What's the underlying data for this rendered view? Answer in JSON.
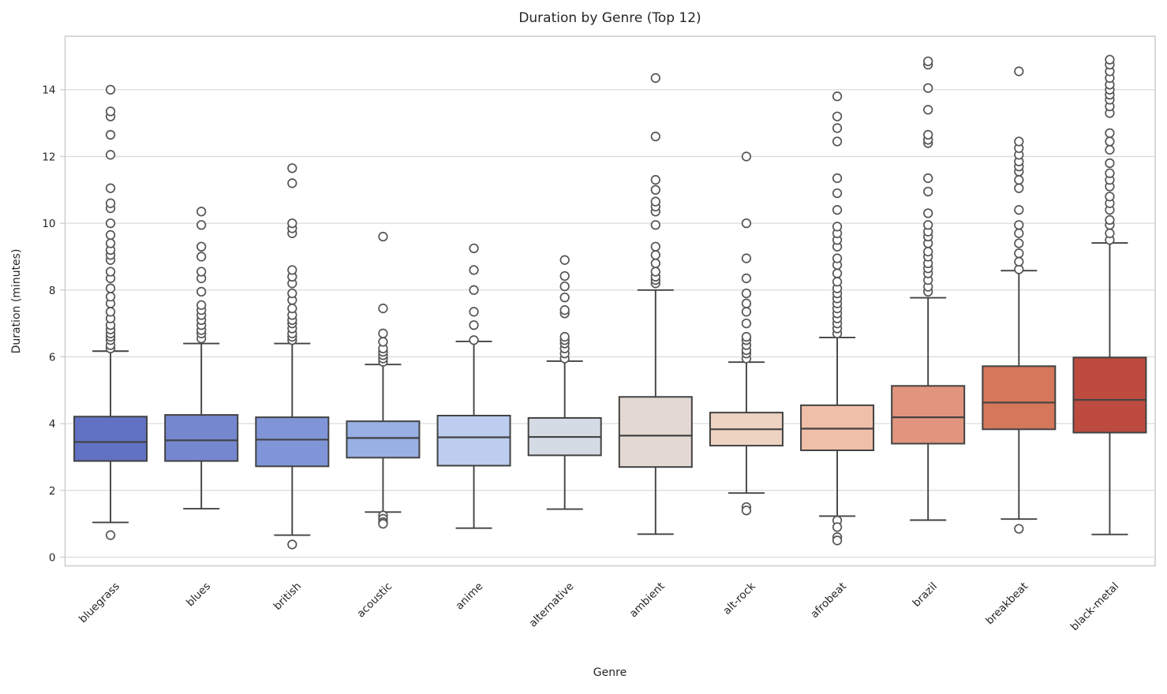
{
  "figure": {
    "title": "Duration by Genre (Top 12)",
    "xlabel": "Genre",
    "ylabel": "Duration (minutes)"
  },
  "chart_data": {
    "type": "box",
    "title": "Duration by Genre (Top 12)",
    "xlabel": "Genre",
    "ylabel": "Duration (minutes)",
    "palette_name": "coolwarm",
    "grid": "horizontal-only",
    "legend": "none",
    "ylim": [
      -0.26,
      15.6
    ],
    "yticks": [
      0,
      2,
      4,
      6,
      8,
      10,
      12,
      14
    ],
    "categories": [
      "bluegrass",
      "blues",
      "british",
      "acoustic",
      "anime",
      "alternative",
      "ambient",
      "alt-rock",
      "afrobeat",
      "brazil",
      "breakbeat",
      "black-metal"
    ],
    "colors": {
      "grid": "#dcdcdc",
      "frame": "#cccccc",
      "box_edge": "#424242",
      "outlier_edge": "#555555",
      "text": "#262626"
    },
    "series": [
      {
        "genre": "bluegrass",
        "color": "#6172c3",
        "q1": 2.88,
        "median": 3.45,
        "q3": 4.21,
        "whisker_low": 1.04,
        "whisker_high": 6.17,
        "outliers": [
          0.66,
          6.25,
          6.35,
          6.5,
          6.6,
          6.7,
          6.82,
          6.95,
          7.15,
          7.35,
          7.6,
          7.8,
          8.05,
          8.35,
          8.55,
          8.9,
          9.05,
          9.2,
          9.4,
          9.65,
          10.0,
          10.45,
          10.6,
          11.05,
          12.05,
          12.65,
          13.2,
          13.35,
          14.0
        ]
      },
      {
        "genre": "blues",
        "color": "#7587cf",
        "q1": 2.88,
        "median": 3.5,
        "q3": 4.26,
        "whisker_low": 1.45,
        "whisker_high": 6.4,
        "outliers": [
          6.55,
          6.7,
          6.8,
          6.95,
          7.1,
          7.25,
          7.4,
          7.55,
          7.95,
          8.35,
          8.55,
          9.0,
          9.3,
          9.95,
          10.35
        ]
      },
      {
        "genre": "british",
        "color": "#8095d8",
        "q1": 2.72,
        "median": 3.52,
        "q3": 4.19,
        "whisker_low": 0.66,
        "whisker_high": 6.4,
        "outliers": [
          0.38,
          6.5,
          6.6,
          6.7,
          6.85,
          7.0,
          7.1,
          7.25,
          7.45,
          7.7,
          7.9,
          8.2,
          8.4,
          8.6,
          9.7,
          9.85,
          10.0,
          11.2,
          11.65
        ]
      },
      {
        "genre": "acoustic",
        "color": "#98b0e4",
        "q1": 2.98,
        "median": 3.57,
        "q3": 4.07,
        "whisker_low": 1.35,
        "whisker_high": 5.77,
        "outliers": [
          1.25,
          1.15,
          1.05,
          1.0,
          5.85,
          5.95,
          6.05,
          6.15,
          6.25,
          6.45,
          6.7,
          7.45,
          9.6
        ]
      },
      {
        "genre": "anime",
        "color": "#bccdf0",
        "q1": 2.74,
        "median": 3.59,
        "q3": 4.24,
        "whisker_low": 0.87,
        "whisker_high": 6.46,
        "outliers": [
          6.5,
          6.95,
          7.35,
          8.0,
          8.6,
          9.25
        ]
      },
      {
        "genre": "alternative",
        "color": "#d5dbe4",
        "q1": 3.05,
        "median": 3.6,
        "q3": 4.17,
        "whisker_low": 1.44,
        "whisker_high": 5.87,
        "outliers": [
          5.95,
          6.1,
          6.25,
          6.4,
          6.5,
          6.6,
          7.3,
          7.4,
          7.78,
          8.11,
          8.42,
          8.9
        ]
      },
      {
        "genre": "ambient",
        "color": "#e3d9d2",
        "q1": 2.7,
        "median": 3.64,
        "q3": 4.8,
        "whisker_low": 0.69,
        "whisker_high": 8.0,
        "outliers": [
          8.2,
          8.3,
          8.4,
          8.55,
          8.8,
          9.05,
          9.3,
          9.95,
          10.35,
          10.5,
          10.65,
          11.0,
          11.3,
          12.6,
          14.35
        ]
      },
      {
        "genre": "alt-rock",
        "color": "#eed3c2",
        "q1": 3.34,
        "median": 3.83,
        "q3": 4.33,
        "whisker_low": 1.92,
        "whisker_high": 5.84,
        "outliers": [
          1.5,
          1.4,
          5.95,
          6.1,
          6.2,
          6.35,
          6.5,
          6.6,
          7.0,
          7.35,
          7.6,
          7.9,
          8.35,
          8.95,
          10.0,
          12.0
        ]
      },
      {
        "genre": "afrobeat",
        "color": "#f0bfa7",
        "q1": 3.2,
        "median": 3.85,
        "q3": 4.55,
        "whisker_low": 1.23,
        "whisker_high": 6.58,
        "outliers": [
          1.1,
          0.9,
          0.6,
          0.5,
          6.7,
          6.85,
          7.0,
          7.15,
          7.3,
          7.45,
          7.6,
          7.75,
          7.9,
          8.05,
          8.25,
          8.5,
          8.75,
          8.95,
          9.3,
          9.5,
          9.7,
          9.9,
          10.4,
          10.9,
          11.35,
          12.45,
          12.85,
          13.2,
          13.8
        ]
      },
      {
        "genre": "brazil",
        "color": "#e2957e",
        "q1": 3.4,
        "median": 4.19,
        "q3": 5.13,
        "whisker_low": 1.11,
        "whisker_high": 7.77,
        "outliers": [
          7.95,
          8.1,
          8.3,
          8.5,
          8.65,
          8.8,
          9.0,
          9.15,
          9.4,
          9.6,
          9.75,
          9.95,
          10.3,
          10.95,
          11.35,
          12.4,
          12.5,
          12.65,
          13.4,
          14.05,
          14.75,
          14.85
        ]
      },
      {
        "genre": "breakbeat",
        "color": "#d4775b",
        "q1": 3.83,
        "median": 4.63,
        "q3": 5.72,
        "whisker_low": 1.14,
        "whisker_high": 8.58,
        "outliers": [
          0.85,
          8.62,
          8.85,
          9.1,
          9.4,
          9.7,
          9.95,
          10.4,
          11.05,
          11.3,
          11.55,
          11.7,
          11.85,
          12.05,
          12.25,
          12.45,
          14.55
        ]
      },
      {
        "genre": "black-metal",
        "color": "#bd4b40",
        "q1": 3.73,
        "median": 4.71,
        "q3": 5.98,
        "whisker_low": 0.68,
        "whisker_high": 9.41,
        "outliers": [
          9.5,
          9.7,
          9.95,
          10.1,
          10.4,
          10.6,
          10.8,
          11.1,
          11.3,
          11.5,
          11.8,
          12.2,
          12.45,
          12.7,
          13.3,
          13.5,
          13.7,
          13.85,
          14.0,
          14.15,
          14.35,
          14.55,
          14.75,
          14.9
        ]
      }
    ]
  }
}
